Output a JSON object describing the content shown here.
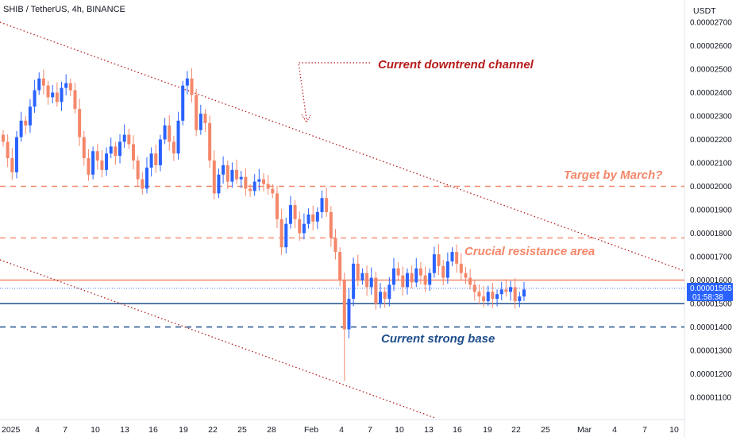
{
  "chart_data": {
    "type": "candlestick",
    "title": "SHIB / TetherUS, 4h, BINANCE",
    "y_unit": "USDT",
    "ylim": [
      1e-05,
      2.75e-05
    ],
    "y_ticks": [
      "0.00001100",
      "0.00001200",
      "0.00001300",
      "0.00001400",
      "0.00001500",
      "0.00001600",
      "0.00001700",
      "0.00001800",
      "0.00001900",
      "0.00002000",
      "0.00002100",
      "0.00002200",
      "0.00002300",
      "0.00002400",
      "0.00002500",
      "0.00002600",
      "0.00002700"
    ],
    "x_ticks": [
      "2025",
      "4",
      "7",
      "10",
      "13",
      "16",
      "19",
      "22",
      "25",
      "28",
      "Feb",
      "4",
      "7",
      "10",
      "13",
      "16",
      "19",
      "22",
      "25",
      "Mar",
      "4",
      "7",
      "10"
    ],
    "last_price_label": "0.00001565",
    "countdown_label": "01:58:38",
    "up_color": "#2962ff",
    "down_color": "#f4876a",
    "close_series": [
      2.19e-05,
      2.12e-05,
      2.06e-05,
      2.21e-05,
      2.28e-05,
      2.26e-05,
      2.34e-05,
      2.41e-05,
      2.46e-05,
      2.43e-05,
      2.38e-05,
      2.4e-05,
      2.36e-05,
      2.42e-05,
      2.44e-05,
      2.41e-05,
      2.33e-05,
      2.21e-05,
      2.12e-05,
      2.05e-05,
      2.15e-05,
      2.11e-05,
      2.07e-05,
      2.14e-05,
      2.17e-05,
      2.13e-05,
      2.19e-05,
      2.22e-05,
      2.18e-05,
      2.11e-05,
      2.03e-05,
      1.99e-05,
      2.08e-05,
      2.14e-05,
      2.09e-05,
      2.2e-05,
      2.26e-05,
      2.19e-05,
      2.14e-05,
      2.28e-05,
      2.43e-05,
      2.46e-05,
      2.39e-05,
      2.24e-05,
      2.31e-05,
      2.27e-05,
      2.11e-05,
      1.97e-05,
      2.05e-05,
      2.09e-05,
      2.02e-05,
      2.07e-05,
      2.03e-05,
      2.04e-05,
      1.99e-05,
      1.98e-05,
      2.02e-05,
      2.03e-05,
      2.01e-05,
      1.99e-05,
      1.97e-05,
      1.86e-05,
      1.74e-05,
      1.84e-05,
      1.92e-05,
      1.86e-05,
      1.8e-05,
      1.84e-05,
      1.88e-05,
      1.85e-05,
      1.89e-05,
      1.95e-05,
      1.89e-05,
      1.78e-05,
      1.72e-05,
      1.6e-05,
      1.39e-05,
      1.52e-05,
      1.67e-05,
      1.6e-05,
      1.63e-05,
      1.57e-05,
      1.61e-05,
      1.5e-05,
      1.55e-05,
      1.52e-05,
      1.58e-05,
      1.65e-05,
      1.62e-05,
      1.57e-05,
      1.63e-05,
      1.59e-05,
      1.65e-05,
      1.62e-05,
      1.58e-05,
      1.63e-05,
      1.71e-05,
      1.66e-05,
      1.61e-05,
      1.68e-05,
      1.72e-05,
      1.67e-05,
      1.63e-05,
      1.61e-05,
      1.58e-05,
      1.55e-05,
      1.53e-05,
      1.51e-05,
      1.55e-05,
      1.52e-05,
      1.54e-05,
      1.56e-05,
      1.55e-05,
      1.57e-05,
      1.51e-05,
      1.53e-05,
      1.56e-05
    ],
    "horizontal_levels": [
      {
        "name": "target",
        "value": 2e-05,
        "style": "dashed",
        "color": "#f4876a"
      },
      {
        "name": "resistance-low",
        "value": 1.78e-05,
        "style": "dashed",
        "color": "#f4876a"
      },
      {
        "name": "resistance-solid",
        "value": 1.6e-05,
        "style": "solid",
        "color": "#f4876a"
      },
      {
        "name": "base-solid",
        "value": 1.5e-05,
        "style": "solid",
        "color": "#1f4e8c"
      },
      {
        "name": "base-dashed",
        "value": 1.4e-05,
        "style": "dashed",
        "color": "#1f4e8c"
      }
    ],
    "annotations": [
      {
        "name": "current-downtrend-channel",
        "text": "Current downtrend channel",
        "color": "#b71c1c"
      },
      {
        "name": "target-by-march",
        "text": "Target by March?",
        "color": "#f4876a"
      },
      {
        "name": "crucial-resistance-area",
        "text": "Crucial resistance area",
        "color": "#f4876a"
      },
      {
        "name": "current-strong-base",
        "text": "Current strong base",
        "color": "#1f4e8c"
      }
    ]
  }
}
